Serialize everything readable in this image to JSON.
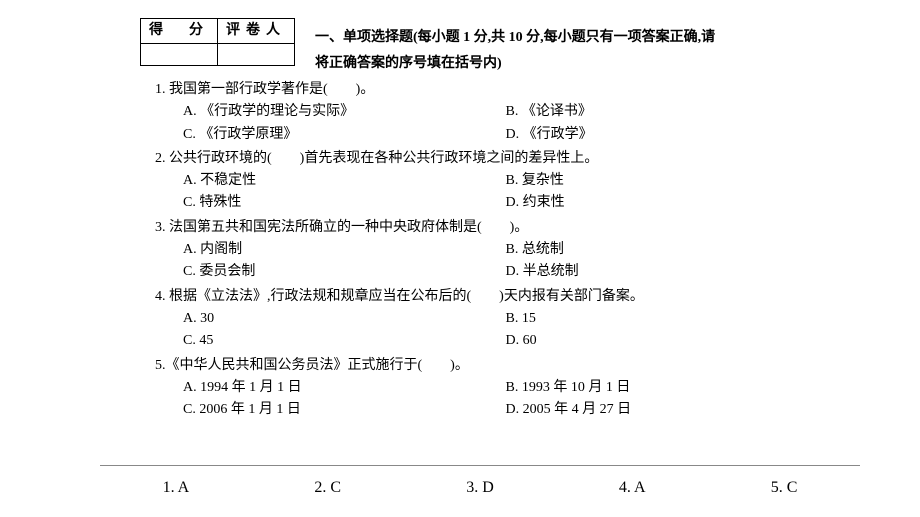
{
  "scoreTable": {
    "h1": "得　分",
    "h2": "评卷人"
  },
  "section": {
    "line1": "一、单项选择题(每小题 1 分,共 10 分,每小题只有一项答案正确,请",
    "line2": "将正确答案的序号填在括号内)"
  },
  "q1": {
    "stem": "1. 我国第一部行政学著作是(　　)。",
    "a": "A. 《行政学的理论与实际》",
    "b": "B. 《论译书》",
    "c": "C. 《行政学原理》",
    "d": "D. 《行政学》"
  },
  "q2": {
    "stem": "2. 公共行政环境的(　　)首先表现在各种公共行政环境之间的差异性上。",
    "a": "A. 不稳定性",
    "b": "B. 复杂性",
    "c": "C. 特殊性",
    "d": "D. 约束性"
  },
  "q3": {
    "stem": "3. 法国第五共和国宪法所确立的一种中央政府体制是(　　)。",
    "a": "A. 内阁制",
    "b": "B. 总统制",
    "c": "C. 委员会制",
    "d": "D. 半总统制"
  },
  "q4": {
    "stem": "4. 根据《立法法》,行政法规和规章应当在公布后的(　　)天内报有关部门备案。",
    "a": "A. 30",
    "b": "B. 15",
    "c": "C. 45",
    "d": "D. 60"
  },
  "q5": {
    "stem": "5.《中华人民共和国公务员法》正式施行于(　　)。",
    "a": "A. 1994 年 1 月 1 日",
    "b": "B. 1993 年 10 月 1 日",
    "c": "C. 2006 年 1 月 1 日",
    "d": "D. 2005 年 4 月 27 日"
  },
  "answers": {
    "a1": "1. A",
    "a2": "2. C",
    "a3": "3. D",
    "a4": "4. A",
    "a5": "5. C"
  }
}
